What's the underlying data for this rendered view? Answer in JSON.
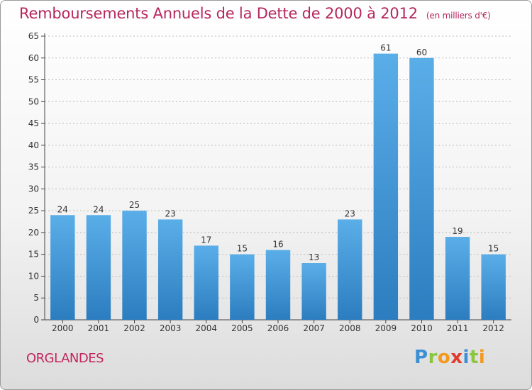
{
  "title": "Remboursements Annuels de la Dette de 2000 à 2012",
  "subtitle": "(en milliers d'€)",
  "town": "ORGLANDES",
  "logo": {
    "text": "Proxiti",
    "letters": [
      {
        "ch": "P",
        "color": "#3a8fd6"
      },
      {
        "ch": "r",
        "color": "#8cc63f"
      },
      {
        "ch": "o",
        "color": "#f29a1d"
      },
      {
        "ch": "x",
        "color": "#e23b2e"
      },
      {
        "ch": "i",
        "color": "#3a8fd6"
      },
      {
        "ch": "t",
        "color": "#8cc63f"
      },
      {
        "ch": "i",
        "color": "#f29a1d"
      }
    ]
  },
  "colors": {
    "bar_top": "#5aaee8",
    "bar_bottom": "#2c7dbf",
    "title": "#b5275d",
    "axis": "#444444",
    "grid": "#bbbbbb"
  },
  "chart_data": {
    "type": "bar",
    "title": "Remboursements Annuels de la Dette de 2000 à 2012",
    "subtitle": "(en milliers d'€)",
    "categories": [
      "2000",
      "2001",
      "2002",
      "2003",
      "2004",
      "2005",
      "2006",
      "2007",
      "2008",
      "2009",
      "2010",
      "2011",
      "2012"
    ],
    "values": [
      24,
      24,
      25,
      23,
      17,
      15,
      16,
      13,
      23,
      61,
      60,
      19,
      15
    ],
    "ylim": [
      0,
      65
    ],
    "yticks": [
      0,
      5,
      10,
      15,
      20,
      25,
      30,
      35,
      40,
      45,
      50,
      55,
      60,
      65
    ],
    "grid": true,
    "data_labels": true
  }
}
